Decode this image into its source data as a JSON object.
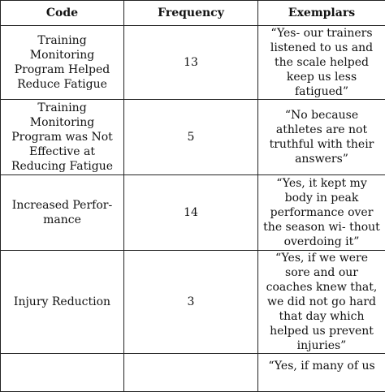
{
  "header": {
    "code": "Code",
    "frequency": "Frequency",
    "exemplars": "Exemplars"
  },
  "rows": [
    {
      "code": "Training Monitoring Program Helped Reduce Fatigue",
      "frequency": "13",
      "exemplar": "“Yes- our trainers listened to us and the scale helped keep us less fatigued”"
    },
    {
      "code": "Training Monitoring Program was Not Effective at Reducing Fatigue",
      "frequency": "5",
      "exemplar": "“No because athletes are not truthful with their answers”"
    },
    {
      "code": "Increased Perfor- mance",
      "frequency": "14",
      "exemplar": "“Yes, it kept my body in peak performance over the season wi- thout overdoing it”"
    },
    {
      "code": "Injury Reduction",
      "frequency": "3",
      "exemplar": "“Yes, if we were sore and our coaches knew that, we did not go hard that day which helped us prevent injuries”"
    },
    {
      "code": "",
      "frequency": "",
      "exemplar": "“Yes, if many of us"
    }
  ]
}
